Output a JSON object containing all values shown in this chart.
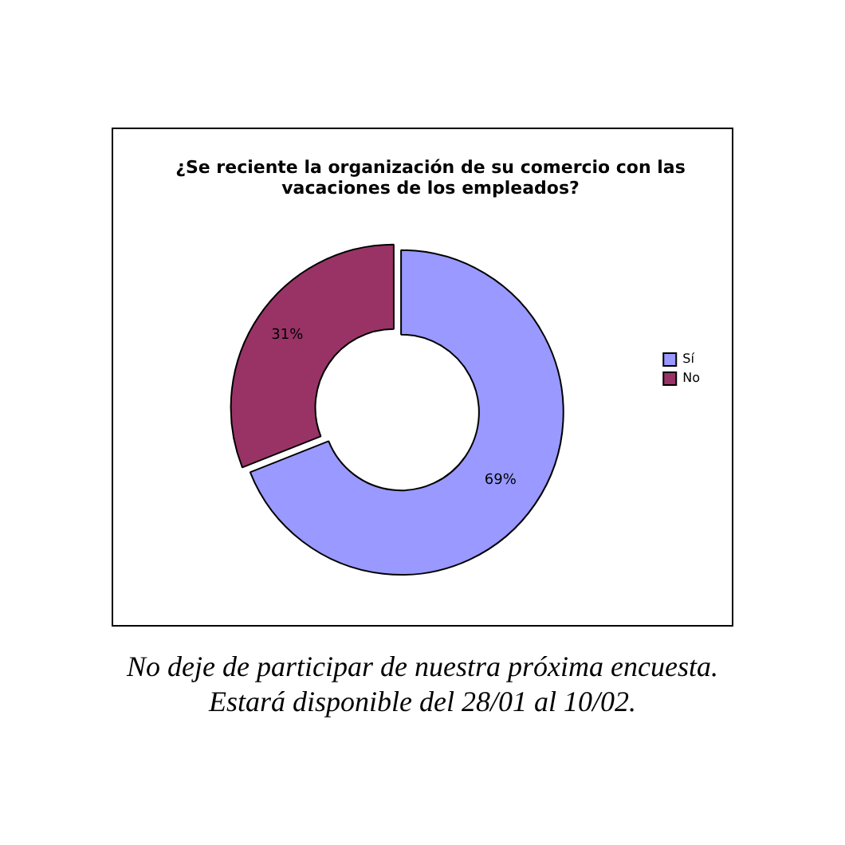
{
  "chart_data": {
    "type": "donut",
    "title": "¿Se reciente la organización de su comercio con las vacaciones de los empleados?",
    "categories": [
      "Sí",
      "No"
    ],
    "values": [
      69,
      31
    ],
    "colors": [
      "#9999ff",
      "#993366"
    ],
    "value_labels": [
      "69%",
      "31%"
    ],
    "legend": "right",
    "annotations": [
      "No deje de participar de nuestra próxima encuesta.",
      "Estará disponible del 28/01 al  10/02."
    ]
  }
}
